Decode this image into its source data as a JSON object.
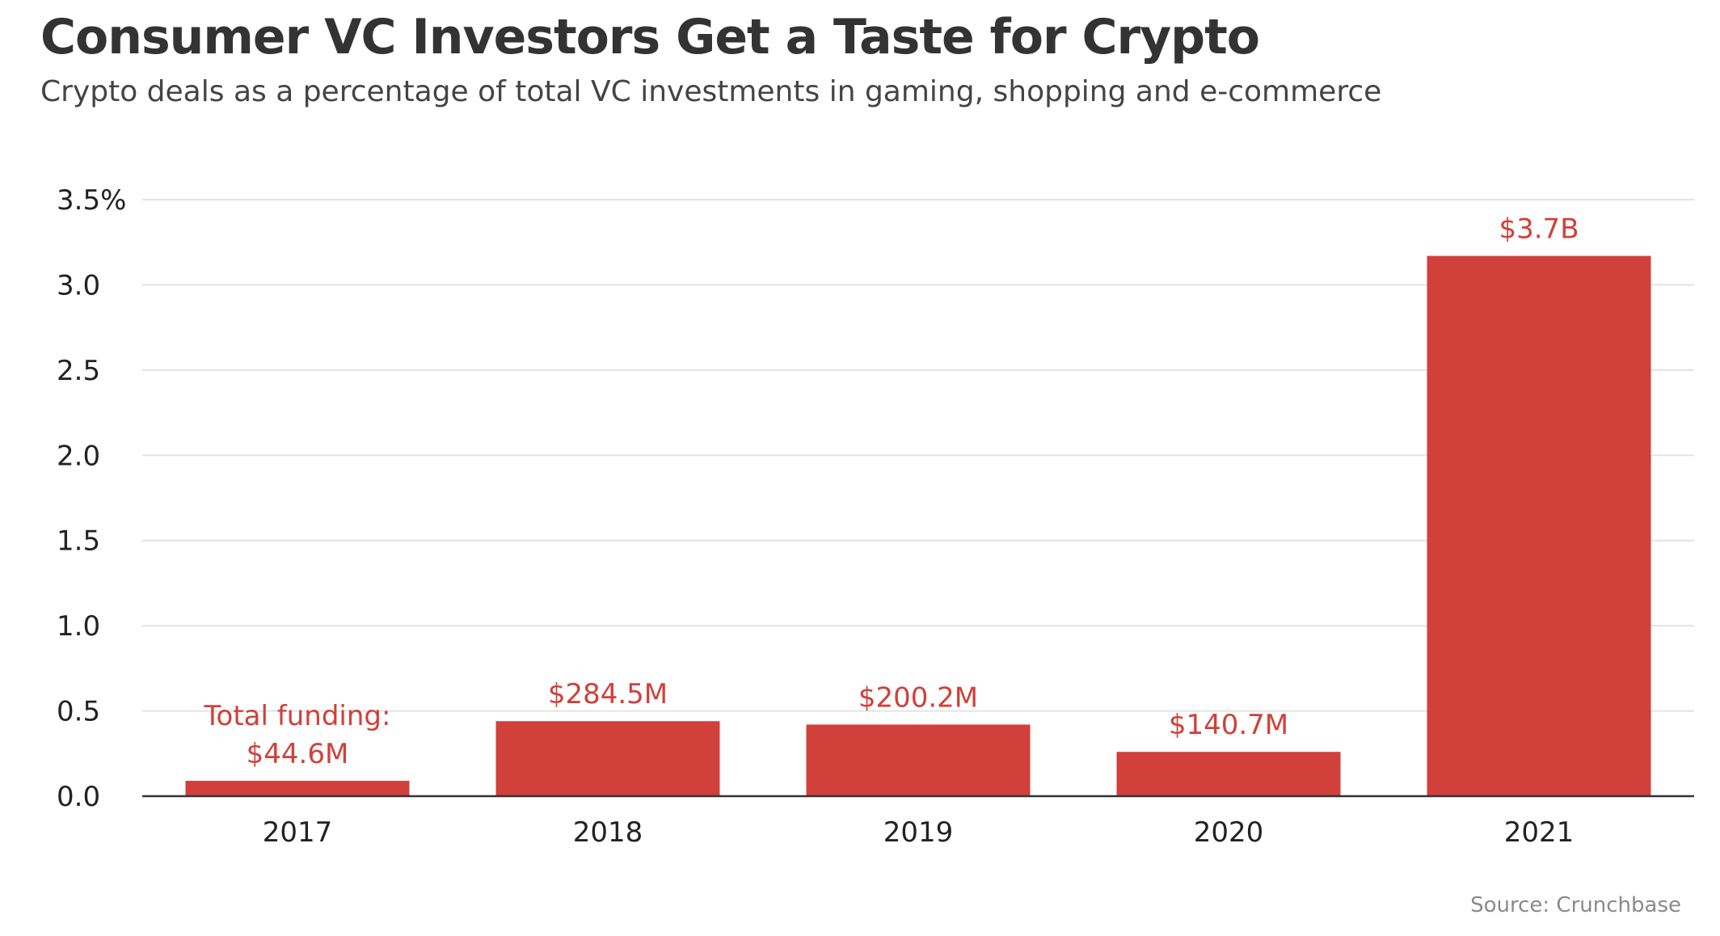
{
  "title": "Consumer VC Investors Get a Taste for Crypto",
  "subtitle": "Crypto deals as a percentage of total VC investments in gaming, shopping and e-commerce",
  "source": "Source: Crunchbase",
  "colors": {
    "bar": "#d1403a",
    "label": "#d1403a",
    "grid": "#e3e3e3",
    "axis": "#333333"
  },
  "chart_data": {
    "type": "bar",
    "categories": [
      "2017",
      "2018",
      "2019",
      "2020",
      "2021"
    ],
    "values": [
      0.09,
      0.44,
      0.42,
      0.26,
      3.17
    ],
    "data_labels": [
      [
        "Total funding:",
        "$44.6M"
      ],
      [
        "$284.5M"
      ],
      [
        "$200.2M"
      ],
      [
        "$140.7M"
      ],
      [
        "$3.7B"
      ]
    ],
    "ylim": [
      0,
      3.5
    ],
    "yticks": [
      {
        "value": 0,
        "label": "0.0"
      },
      {
        "value": 0.5,
        "label": "0.5"
      },
      {
        "value": 1.0,
        "label": "1.0"
      },
      {
        "value": 1.5,
        "label": "1.5"
      },
      {
        "value": 2.0,
        "label": "2.0"
      },
      {
        "value": 2.5,
        "label": "2.5"
      },
      {
        "value": 3.0,
        "label": "3.0"
      },
      {
        "value": 3.5,
        "label": "3.5%"
      }
    ],
    "xlabel": "",
    "ylabel": "",
    "grid": true,
    "legend": "none"
  }
}
